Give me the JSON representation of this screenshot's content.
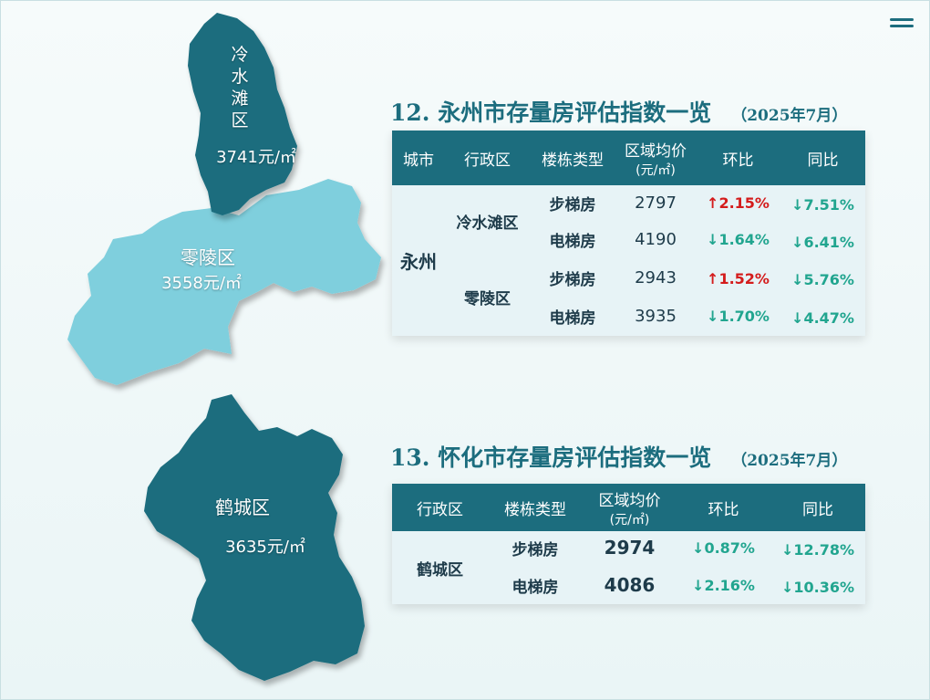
{
  "colors": {
    "dark_region": "#1c6d7e",
    "light_region": "#7fcfdd",
    "up": "#d41c1c",
    "down": "#21a58f"
  },
  "menu": {
    "icon": "hamburger-menu-icon"
  },
  "map": {
    "lengshuitan": {
      "name": "冷水滩区",
      "name_chars": [
        "冷",
        "水",
        "滩",
        "区"
      ],
      "price": "3741元/㎡"
    },
    "lingling": {
      "name": "零陵区",
      "price": "3558元/㎡"
    },
    "hecheng": {
      "name": "鹤城区",
      "price": "3635元/㎡"
    }
  },
  "yongzhou": {
    "title": "12. 永州市存量房评估指数一览",
    "date": "（2025年7月）",
    "headers": {
      "city": "城市",
      "district": "行政区",
      "building_type": "楼栋类型",
      "avg_price": "区域均价",
      "avg_price_unit": "(元/㎡)",
      "mom": "环比",
      "yoy": "同比"
    },
    "city": "永州",
    "districts": [
      "冷水滩区",
      "零陵区"
    ],
    "rows": [
      {
        "type": "步梯房",
        "price": "2797",
        "mom": "↑2.15%",
        "mom_dir": "up",
        "yoy": "↓7.51%",
        "yoy_dir": "down"
      },
      {
        "type": "电梯房",
        "price": "4190",
        "mom": "↓1.64%",
        "mom_dir": "down",
        "yoy": "↓6.41%",
        "yoy_dir": "down"
      },
      {
        "type": "步梯房",
        "price": "2943",
        "mom": "↑1.52%",
        "mom_dir": "up",
        "yoy": "↓5.76%",
        "yoy_dir": "down"
      },
      {
        "type": "电梯房",
        "price": "3935",
        "mom": "↓1.70%",
        "mom_dir": "down",
        "yoy": "↓4.47%",
        "yoy_dir": "down"
      }
    ]
  },
  "huaihua": {
    "title": "13. 怀化市存量房评估指数一览",
    "date": "（2025年7月）",
    "headers": {
      "district": "行政区",
      "building_type": "楼栋类型",
      "avg_price": "区域均价",
      "avg_price_unit": "(元/㎡)",
      "mom": "环比",
      "yoy": "同比"
    },
    "district": "鹤城区",
    "rows": [
      {
        "type": "步梯房",
        "price": "2974",
        "mom": "↓0.87%",
        "mom_dir": "down",
        "yoy": "↓12.78%",
        "yoy_dir": "down"
      },
      {
        "type": "电梯房",
        "price": "4086",
        "mom": "↓2.16%",
        "mom_dir": "down",
        "yoy": "↓10.36%",
        "yoy_dir": "down"
      }
    ]
  }
}
